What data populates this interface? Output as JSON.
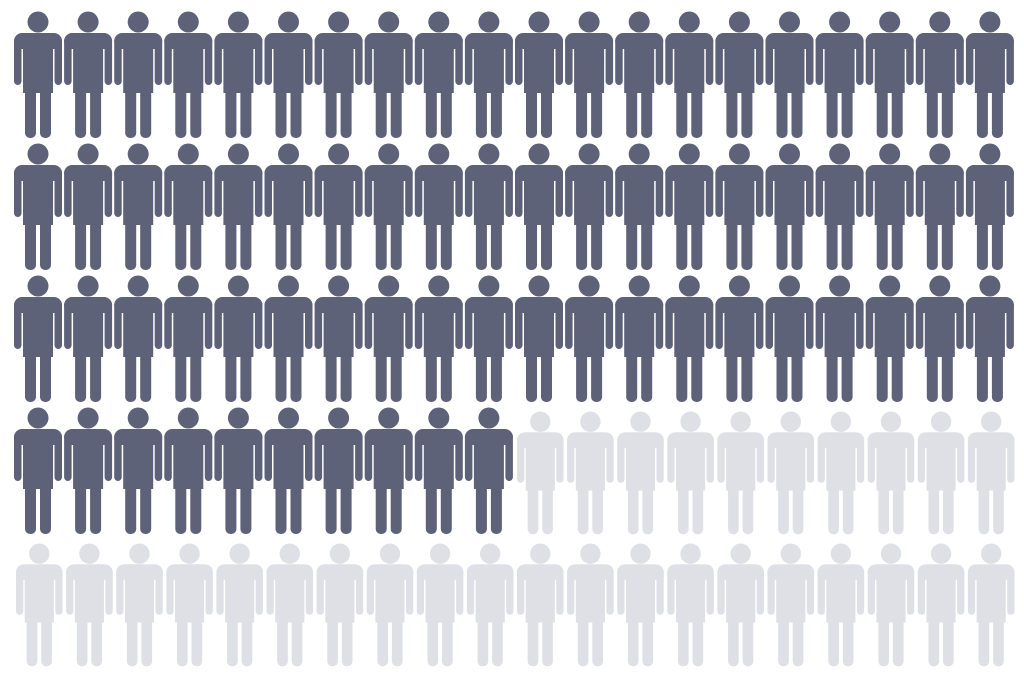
{
  "chart_data": {
    "type": "pictogram",
    "total": 100,
    "highlighted": 70,
    "columns": 20,
    "rows": 5,
    "icon": "person-icon",
    "colors": {
      "highlighted": "#5d6278",
      "remaining": "#dfe0e6"
    }
  }
}
